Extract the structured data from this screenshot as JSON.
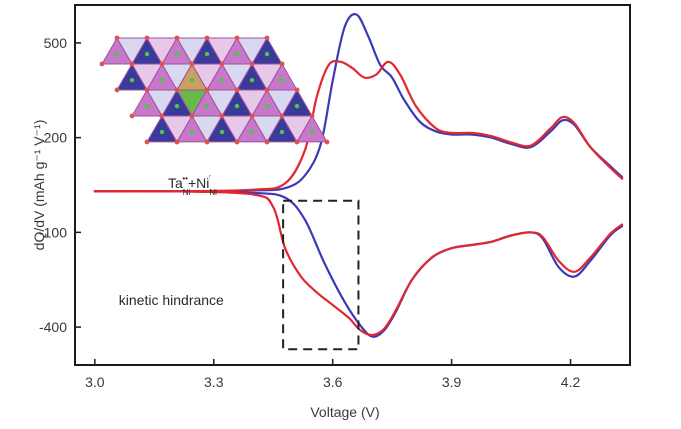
{
  "chart_data": {
    "type": "line",
    "title": "",
    "xlabel": "Voltage (V)",
    "ylabel": "dQ/dV (mAh g⁻¹ V⁻¹)",
    "xlim": [
      2.95,
      4.35
    ],
    "ylim": [
      -520,
      620
    ],
    "xticks": [
      3.0,
      3.3,
      3.6,
      3.9,
      4.2
    ],
    "xtick_labels": [
      "3.0",
      "3.3",
      "3.6",
      "3.9",
      "4.2"
    ],
    "yticks": [
      -400,
      -100,
      200,
      500
    ],
    "ytick_labels": [
      "-400",
      "-100",
      "200",
      "500"
    ],
    "grid": false,
    "legend": "none",
    "series": [
      {
        "color": "#3a3ab8",
        "branches": [
          {
            "x": [
              3.0,
              3.2,
              3.4,
              3.48,
              3.53,
              3.57,
              3.6,
              3.63,
              3.66,
              3.69,
              3.72,
              3.75,
              3.78,
              3.82,
              3.86,
              3.9,
              3.95,
              4.0,
              4.05,
              4.1,
              4.15,
              4.18,
              4.21,
              4.25,
              4.3,
              4.33
            ],
            "y": [
              30,
              30,
              33,
              40,
              80,
              180,
              380,
              550,
              590,
              520,
              430,
              390,
              320,
              250,
              220,
              210,
              210,
              200,
              180,
              170,
              220,
              255,
              240,
              170,
              110,
              75
            ]
          },
          {
            "x": [
              3.0,
              3.2,
              3.4,
              3.48,
              3.53,
              3.58,
              3.63,
              3.67,
              3.7,
              3.73,
              3.76,
              3.8,
              3.85,
              3.9,
              3.95,
              4.0,
              4.05,
              4.1,
              4.13,
              4.17,
              4.21,
              4.25,
              4.3,
              4.33
            ],
            "y": [
              30,
              30,
              25,
              10,
              -60,
              -200,
              -320,
              -395,
              -430,
              -410,
              -350,
              -250,
              -180,
              -150,
              -140,
              -130,
              -110,
              -100,
              -120,
              -210,
              -240,
              -190,
              -110,
              -80
            ]
          }
        ]
      },
      {
        "color": "#e0282e",
        "branches": [
          {
            "x": [
              3.0,
              3.2,
              3.4,
              3.48,
              3.53,
              3.56,
              3.59,
              3.62,
              3.65,
              3.68,
              3.71,
              3.74,
              3.77,
              3.81,
              3.86,
              3.9,
              3.95,
              4.0,
              4.05,
              4.1,
              4.15,
              4.18,
              4.21,
              4.25,
              4.3,
              4.33
            ],
            "y": [
              30,
              30,
              35,
              55,
              160,
              330,
              430,
              440,
              420,
              390,
              400,
              440,
              400,
              300,
              230,
              215,
              215,
              205,
              185,
              175,
              230,
              265,
              245,
              170,
              105,
              70
            ]
          },
          {
            "x": [
              3.0,
              3.2,
              3.4,
              3.45,
              3.48,
              3.52,
              3.56,
              3.6,
              3.64,
              3.67,
              3.7,
              3.73,
              3.76,
              3.8,
              3.85,
              3.9,
              3.95,
              4.0,
              4.05,
              4.1,
              4.13,
              4.17,
              4.21,
              4.25,
              4.3,
              4.33
            ],
            "y": [
              30,
              30,
              20,
              -20,
              -150,
              -240,
              -290,
              -330,
              -370,
              -410,
              -425,
              -405,
              -345,
              -250,
              -180,
              -150,
              -140,
              -130,
              -110,
              -100,
              -115,
              -190,
              -225,
              -180,
              -105,
              -75
            ]
          }
        ]
      }
    ],
    "annotations": [
      {
        "text": "kinetic hindrance",
        "x": 3.01,
        "y": -330
      }
    ],
    "dashed_box": {
      "x0": 3.475,
      "x1": 3.665,
      "y0": -470,
      "y1": 0
    },
    "inset": {
      "caption": "Ta",
      "sub1": "Ni",
      "sup1": "••",
      "plus": "+Ni",
      "sub2": "Ni",
      "sup2": "′"
    }
  }
}
